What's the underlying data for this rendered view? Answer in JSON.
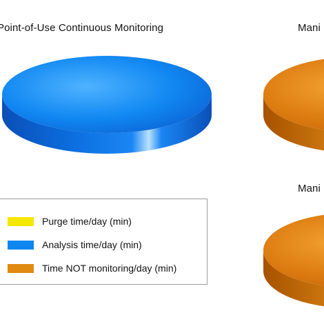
{
  "chart_data": [
    {
      "type": "pie",
      "title": "Point-of-Use Continuous Monitoring",
      "slices": [
        {
          "label": "Purge time/day (min)",
          "value": 0,
          "color": "#f5e800"
        },
        {
          "label": "Analysis time/day (min)",
          "value": 100,
          "color": "#0d86f0"
        },
        {
          "label": "Time NOT monitoring/day (min)",
          "value": 0,
          "color": "#e08a12"
        }
      ]
    },
    {
      "type": "pie",
      "title": "Mani",
      "slices": [
        {
          "label": "Time NOT monitoring/day (min)",
          "value": 100,
          "color": "#e08a12"
        }
      ]
    },
    {
      "type": "pie",
      "title": "Mani",
      "slices": [
        {
          "label": "Time NOT monitoring/day (min)",
          "value": 100,
          "color": "#e08a12"
        }
      ]
    }
  ],
  "legend": {
    "items": [
      {
        "label": "Purge time/day (min)",
        "color": "#f5e800"
      },
      {
        "label": "Analysis time/day (min)",
        "color": "#0d86f0"
      },
      {
        "label": "Time NOT monitoring/day (min)",
        "color": "#e08a12"
      }
    ]
  }
}
